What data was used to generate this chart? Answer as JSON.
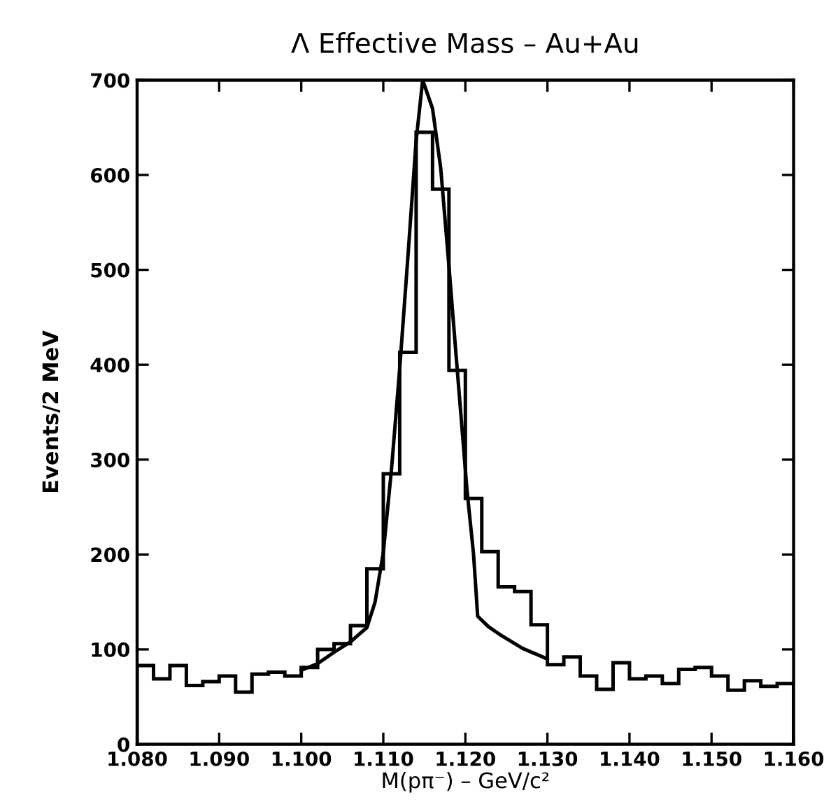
{
  "chart_data": {
    "type": "histogram",
    "title": "Λ Effective Mass – Au+Au",
    "xlabel": "M(pπ⁻) – GeV/c²",
    "ylabel": "Events/2 MeV",
    "xlim": [
      1.08,
      1.16
    ],
    "xticks": [
      {
        "value": 1.08,
        "label": "1.080"
      },
      {
        "value": 1.09,
        "label": "1.090"
      },
      {
        "value": 1.1,
        "label": "1.100"
      },
      {
        "value": 1.11,
        "label": "1.110"
      },
      {
        "value": 1.12,
        "label": "1.120"
      },
      {
        "value": 1.13,
        "label": "1.130"
      },
      {
        "value": 1.14,
        "label": "1.140"
      },
      {
        "value": 1.15,
        "label": "1.150"
      },
      {
        "value": 1.16,
        "label": "1.160"
      }
    ],
    "ylim": [
      0,
      700
    ],
    "yticks": [
      0,
      100,
      200,
      300,
      400,
      500,
      600,
      700
    ],
    "grid": false,
    "legend": false,
    "series": [
      {
        "type": "histogram",
        "color": "#000000",
        "bins": [
          1.08,
          1.082,
          1.084,
          1.086,
          1.088,
          1.09,
          1.092,
          1.094,
          1.096,
          1.098,
          1.1,
          1.102,
          1.104,
          1.106,
          1.108,
          1.11,
          1.112,
          1.114,
          1.116,
          1.118,
          1.12,
          1.122,
          1.124,
          1.126,
          1.128,
          1.13,
          1.132,
          1.134,
          1.136,
          1.138,
          1.14,
          1.142,
          1.144,
          1.146,
          1.148,
          1.15,
          1.152,
          1.154,
          1.156,
          1.158,
          1.16
        ],
        "values": [
          83,
          69,
          83,
          62,
          66,
          72,
          55,
          74,
          76,
          72,
          81,
          100,
          106,
          125,
          185,
          285,
          413,
          645,
          585,
          394,
          259,
          203,
          166,
          161,
          126,
          84,
          92,
          72,
          58,
          86,
          69,
          72,
          64,
          79,
          81,
          72,
          57,
          67,
          61,
          64
        ]
      },
      {
        "type": "line",
        "color": "#000000",
        "line_style": "solid",
        "marker": "none",
        "x": [
          1.1,
          1.102,
          1.104,
          1.106,
          1.108,
          1.109,
          1.11,
          1.111,
          1.112,
          1.113,
          1.114,
          1.1148,
          1.116,
          1.117,
          1.118,
          1.119,
          1.1202,
          1.121,
          1.1215,
          1.1228,
          1.1245,
          1.127,
          1.1297
        ],
        "values": [
          78,
          85,
          97,
          108,
          123,
          150,
          202,
          290,
          396,
          514,
          636,
          700,
          670,
          607,
          504,
          396,
          268,
          200,
          135,
          124,
          114,
          101,
          91
        ]
      }
    ]
  }
}
